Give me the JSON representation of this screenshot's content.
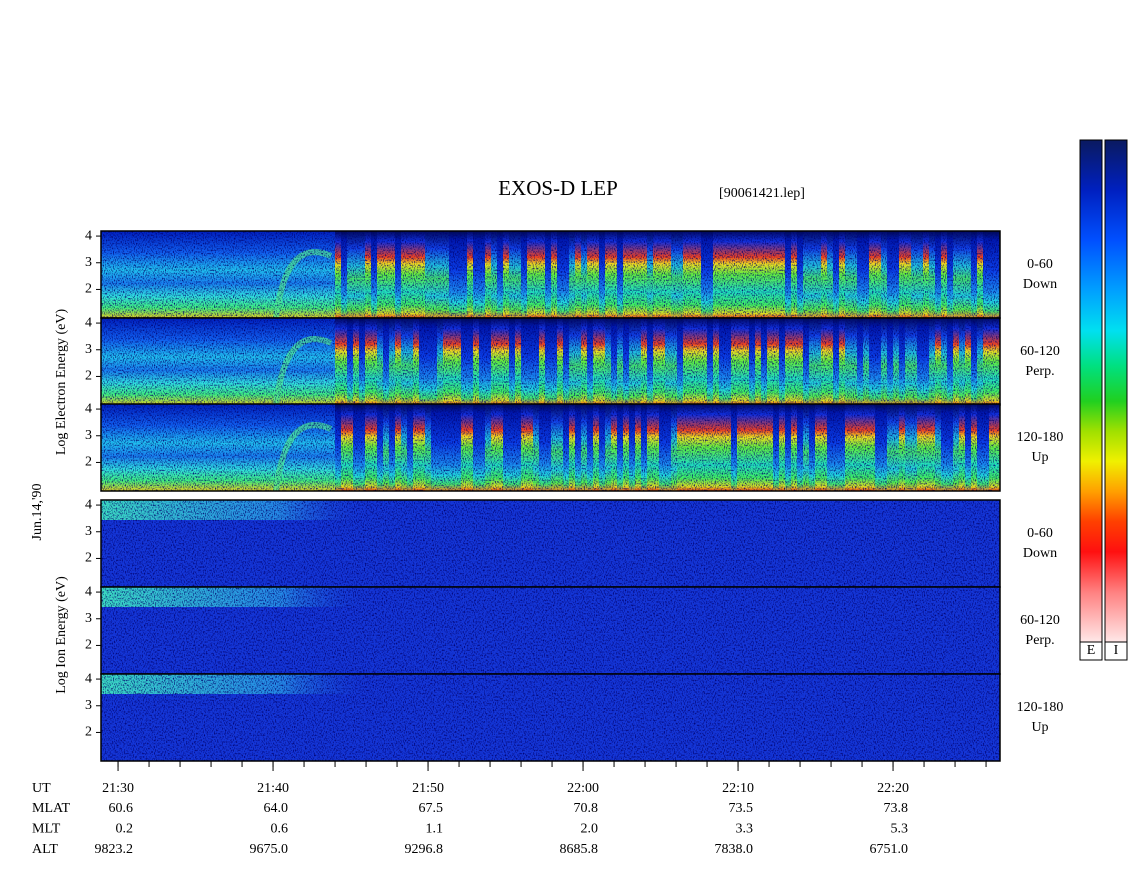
{
  "chart_data": {
    "type": "spectrogram",
    "title": "EXOS-D LEP",
    "file_label": "[90061421.lep]",
    "date_label": "Jun.14,'90",
    "groups": [
      {
        "ylabel": "Log Electron Energy (eV)",
        "colorbar_label": "E",
        "panels": [
          {
            "label": [
              "0-60",
              "Down"
            ]
          },
          {
            "label": [
              "60-120",
              "Perp."
            ]
          },
          {
            "label": [
              "120-180",
              "Up"
            ]
          }
        ]
      },
      {
        "ylabel": "Log Ion Energy (eV)",
        "colorbar_label": "I",
        "panels": [
          {
            "label": [
              "0-60",
              "Down"
            ]
          },
          {
            "label": [
              "60-120",
              "Perp."
            ]
          },
          {
            "label": [
              "120-180",
              "Up"
            ]
          }
        ]
      }
    ],
    "ylim": [
      0.93,
      4.19
    ],
    "yticks": [
      2,
      3,
      4
    ],
    "xlim": [
      1288.9,
      1346.9
    ],
    "xticks": [
      {
        "value": 1290,
        "label": "21:30"
      },
      {
        "value": 1300,
        "label": "21:40"
      },
      {
        "value": 1310,
        "label": "21:50"
      },
      {
        "value": 1320,
        "label": "22:00"
      },
      {
        "value": 1330,
        "label": "22:10"
      },
      {
        "value": 1340,
        "label": "22:20"
      }
    ]
  },
  "orbit_table": {
    "ut_label": "UT",
    "rows": [
      {
        "label": "MLAT",
        "values": [
          "60.6",
          "64.0",
          "67.5",
          "70.8",
          "73.5",
          "73.8"
        ]
      },
      {
        "label": "MLT",
        "values": [
          "0.2",
          "0.6",
          "1.1",
          "2.0",
          "3.3",
          "5.3"
        ]
      },
      {
        "label": "ALT",
        "values": [
          "9823.2",
          "9675.0",
          "9296.8",
          "8685.8",
          "7838.0",
          "6751.0"
        ]
      }
    ]
  }
}
